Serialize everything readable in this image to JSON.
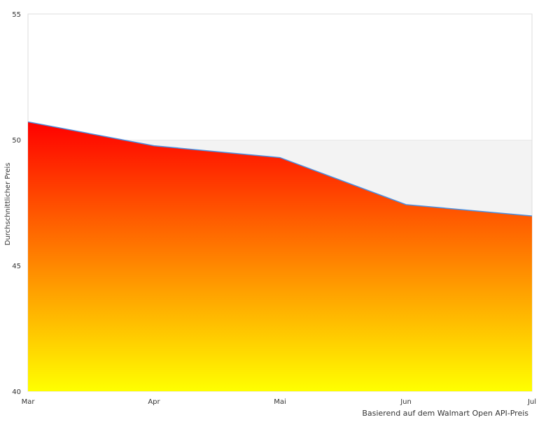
{
  "chart_data": {
    "type": "area",
    "title": "",
    "xlabel": "",
    "ylabel": "Durchschnittlicher Preis",
    "credit": "Basierend auf dem Walmart Open API-Preis",
    "categories": [
      "Mar",
      "Apr",
      "Mai",
      "Jun",
      "Jul"
    ],
    "values": [
      50.71,
      49.76,
      49.29,
      47.42,
      46.97
    ],
    "ylim": [
      40,
      55
    ],
    "yticks": [
      40,
      45,
      50,
      55
    ],
    "grid": true,
    "alternate_bands": true,
    "legend": "none",
    "colors": {
      "line": "#4a90e2",
      "fill_top": "#ff0000",
      "fill_bottom": "#ffff00",
      "band": "#f3f3f3",
      "border": "#dddddd"
    }
  }
}
